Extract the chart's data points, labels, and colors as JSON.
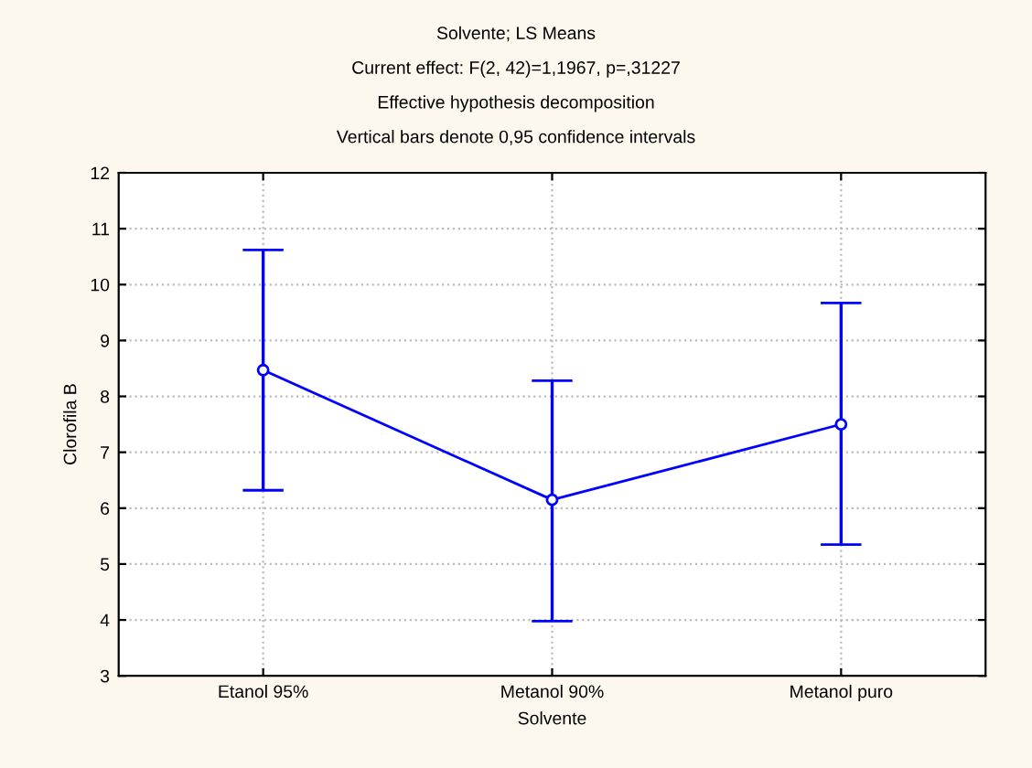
{
  "chart_data": {
    "type": "line",
    "title": "Solvente; LS Means",
    "subtitle": "Current effect: F(2, 42)=1,1967, p=,31227",
    "annotations": [
      "Effective hypothesis decomposition",
      "Vertical bars denote 0,95 confidence intervals"
    ],
    "xlabel": "Solvente",
    "ylabel": "Clorofila B",
    "categories": [
      "Etanol 95%",
      "Metanol 90%",
      "Metanol puro"
    ],
    "series": [
      {
        "color": "#0000ff",
        "values": [
          8.47,
          6.15,
          7.5
        ],
        "errors": [
          [
            6.32,
            10.62
          ],
          [
            3.98,
            8.28
          ],
          [
            5.35,
            9.67
          ]
        ]
      }
    ],
    "ylim": [
      3,
      12
    ],
    "yticks": [
      3,
      4,
      5,
      6,
      7,
      8,
      9,
      10,
      11,
      12
    ],
    "grid": true,
    "marker": "circle",
    "line_style": "solid"
  }
}
